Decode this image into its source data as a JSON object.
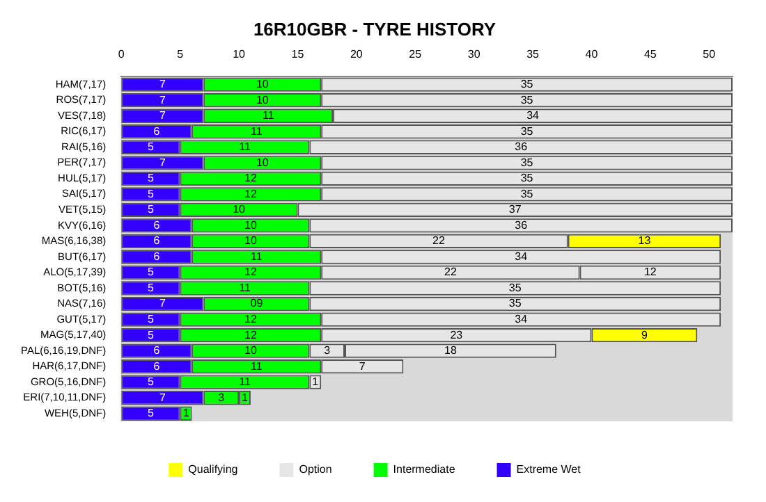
{
  "chart_data": {
    "type": "bar",
    "orientation": "horizontal",
    "stacked": true,
    "title": "16R10GBR - TYRE HISTORY",
    "categories": [
      "HAM(7,17)",
      "ROS(7,17)",
      "VES(7,18)",
      "RIC(6,17)",
      "RAI(5,16)",
      "PER(7,17)",
      "HUL(5,17)",
      "SAI(5,17)",
      "VET(5,15)",
      "KVY(6,16)",
      "MAS(6,16,38)",
      "BUT(6,17)",
      "ALO(5,17,39)",
      "BOT(5,16)",
      "NAS(7,16)",
      "GUT(5,17)",
      "MAG(5,17,40)",
      "PAL(6,16,19,DNF)",
      "HAR(6,17,DNF)",
      "GRO(5,16,DNF)",
      "ERI(7,10,11,DNF)",
      "WEH(5,DNF)"
    ],
    "series": [
      {
        "name": "Extreme Wet",
        "color": "#3300ff",
        "values": [
          7,
          7,
          7,
          6,
          5,
          7,
          5,
          5,
          5,
          6,
          6,
          6,
          5,
          5,
          7,
          5,
          5,
          6,
          6,
          5,
          7,
          5
        ]
      },
      {
        "name": "Intermediate",
        "color": "#00ff00",
        "values": [
          10,
          10,
          11,
          11,
          11,
          10,
          12,
          12,
          10,
          10,
          10,
          11,
          12,
          11,
          9,
          12,
          12,
          10,
          11,
          11,
          3,
          1
        ],
        "value_labels": [
          "10",
          "10",
          "11",
          "11",
          "11",
          "10",
          "12",
          "12",
          "10",
          "10",
          "10",
          "11",
          "12",
          "11",
          "09",
          "12",
          "12",
          "10",
          "11",
          "11",
          "3",
          "1"
        ]
      },
      {
        "color": "#00ff00",
        "values": [
          null,
          null,
          null,
          null,
          null,
          null,
          null,
          null,
          null,
          null,
          null,
          null,
          null,
          null,
          null,
          null,
          null,
          null,
          null,
          null,
          1,
          null
        ]
      },
      {
        "name": "Option",
        "color": "#e6e6e6",
        "values": [
          35,
          35,
          34,
          35,
          36,
          35,
          35,
          35,
          37,
          36,
          22,
          34,
          22,
          35,
          35,
          34,
          23,
          3,
          7,
          1,
          null,
          null
        ]
      },
      {
        "name": "Qualifying",
        "color": "#ffff00",
        "values": [
          null,
          null,
          null,
          null,
          null,
          null,
          null,
          null,
          null,
          null,
          13,
          null,
          null,
          null,
          null,
          null,
          9,
          null,
          null,
          null,
          null,
          null
        ]
      },
      {
        "color": "#e6e6e6",
        "values": [
          null,
          null,
          null,
          null,
          null,
          null,
          null,
          null,
          null,
          null,
          null,
          null,
          12,
          null,
          null,
          null,
          null,
          18,
          null,
          null,
          null,
          null
        ]
      }
    ],
    "xlim": [
      0,
      52
    ],
    "xticks": [
      0,
      5,
      10,
      15,
      20,
      25,
      30,
      35,
      40,
      45,
      50
    ],
    "grid": false,
    "legend": "bottom",
    "data_labels": true
  }
}
